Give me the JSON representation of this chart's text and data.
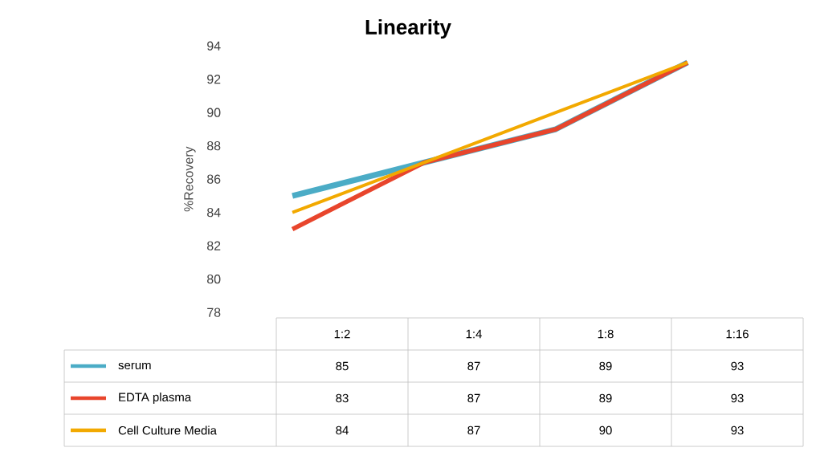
{
  "chart_data": {
    "type": "line",
    "title": "Linearity",
    "ylabel": "%Recovery",
    "categories": [
      "1:2",
      "1:4",
      "1:8",
      "1:16"
    ],
    "series": [
      {
        "name": "serum",
        "color": "#4bacc6",
        "values": [
          85,
          87,
          89,
          93
        ]
      },
      {
        "name": "EDTA plasma",
        "color": "#e8452c",
        "values": [
          83,
          87,
          89,
          93
        ]
      },
      {
        "name": "Cell Culture Media",
        "color": "#f2a900",
        "values": [
          84,
          87,
          90,
          93
        ]
      }
    ],
    "ylim": [
      78,
      94
    ],
    "yticks": [
      78,
      80,
      82,
      84,
      86,
      88,
      90,
      92,
      94
    ],
    "data_labels": true,
    "legend": "bottom"
  }
}
